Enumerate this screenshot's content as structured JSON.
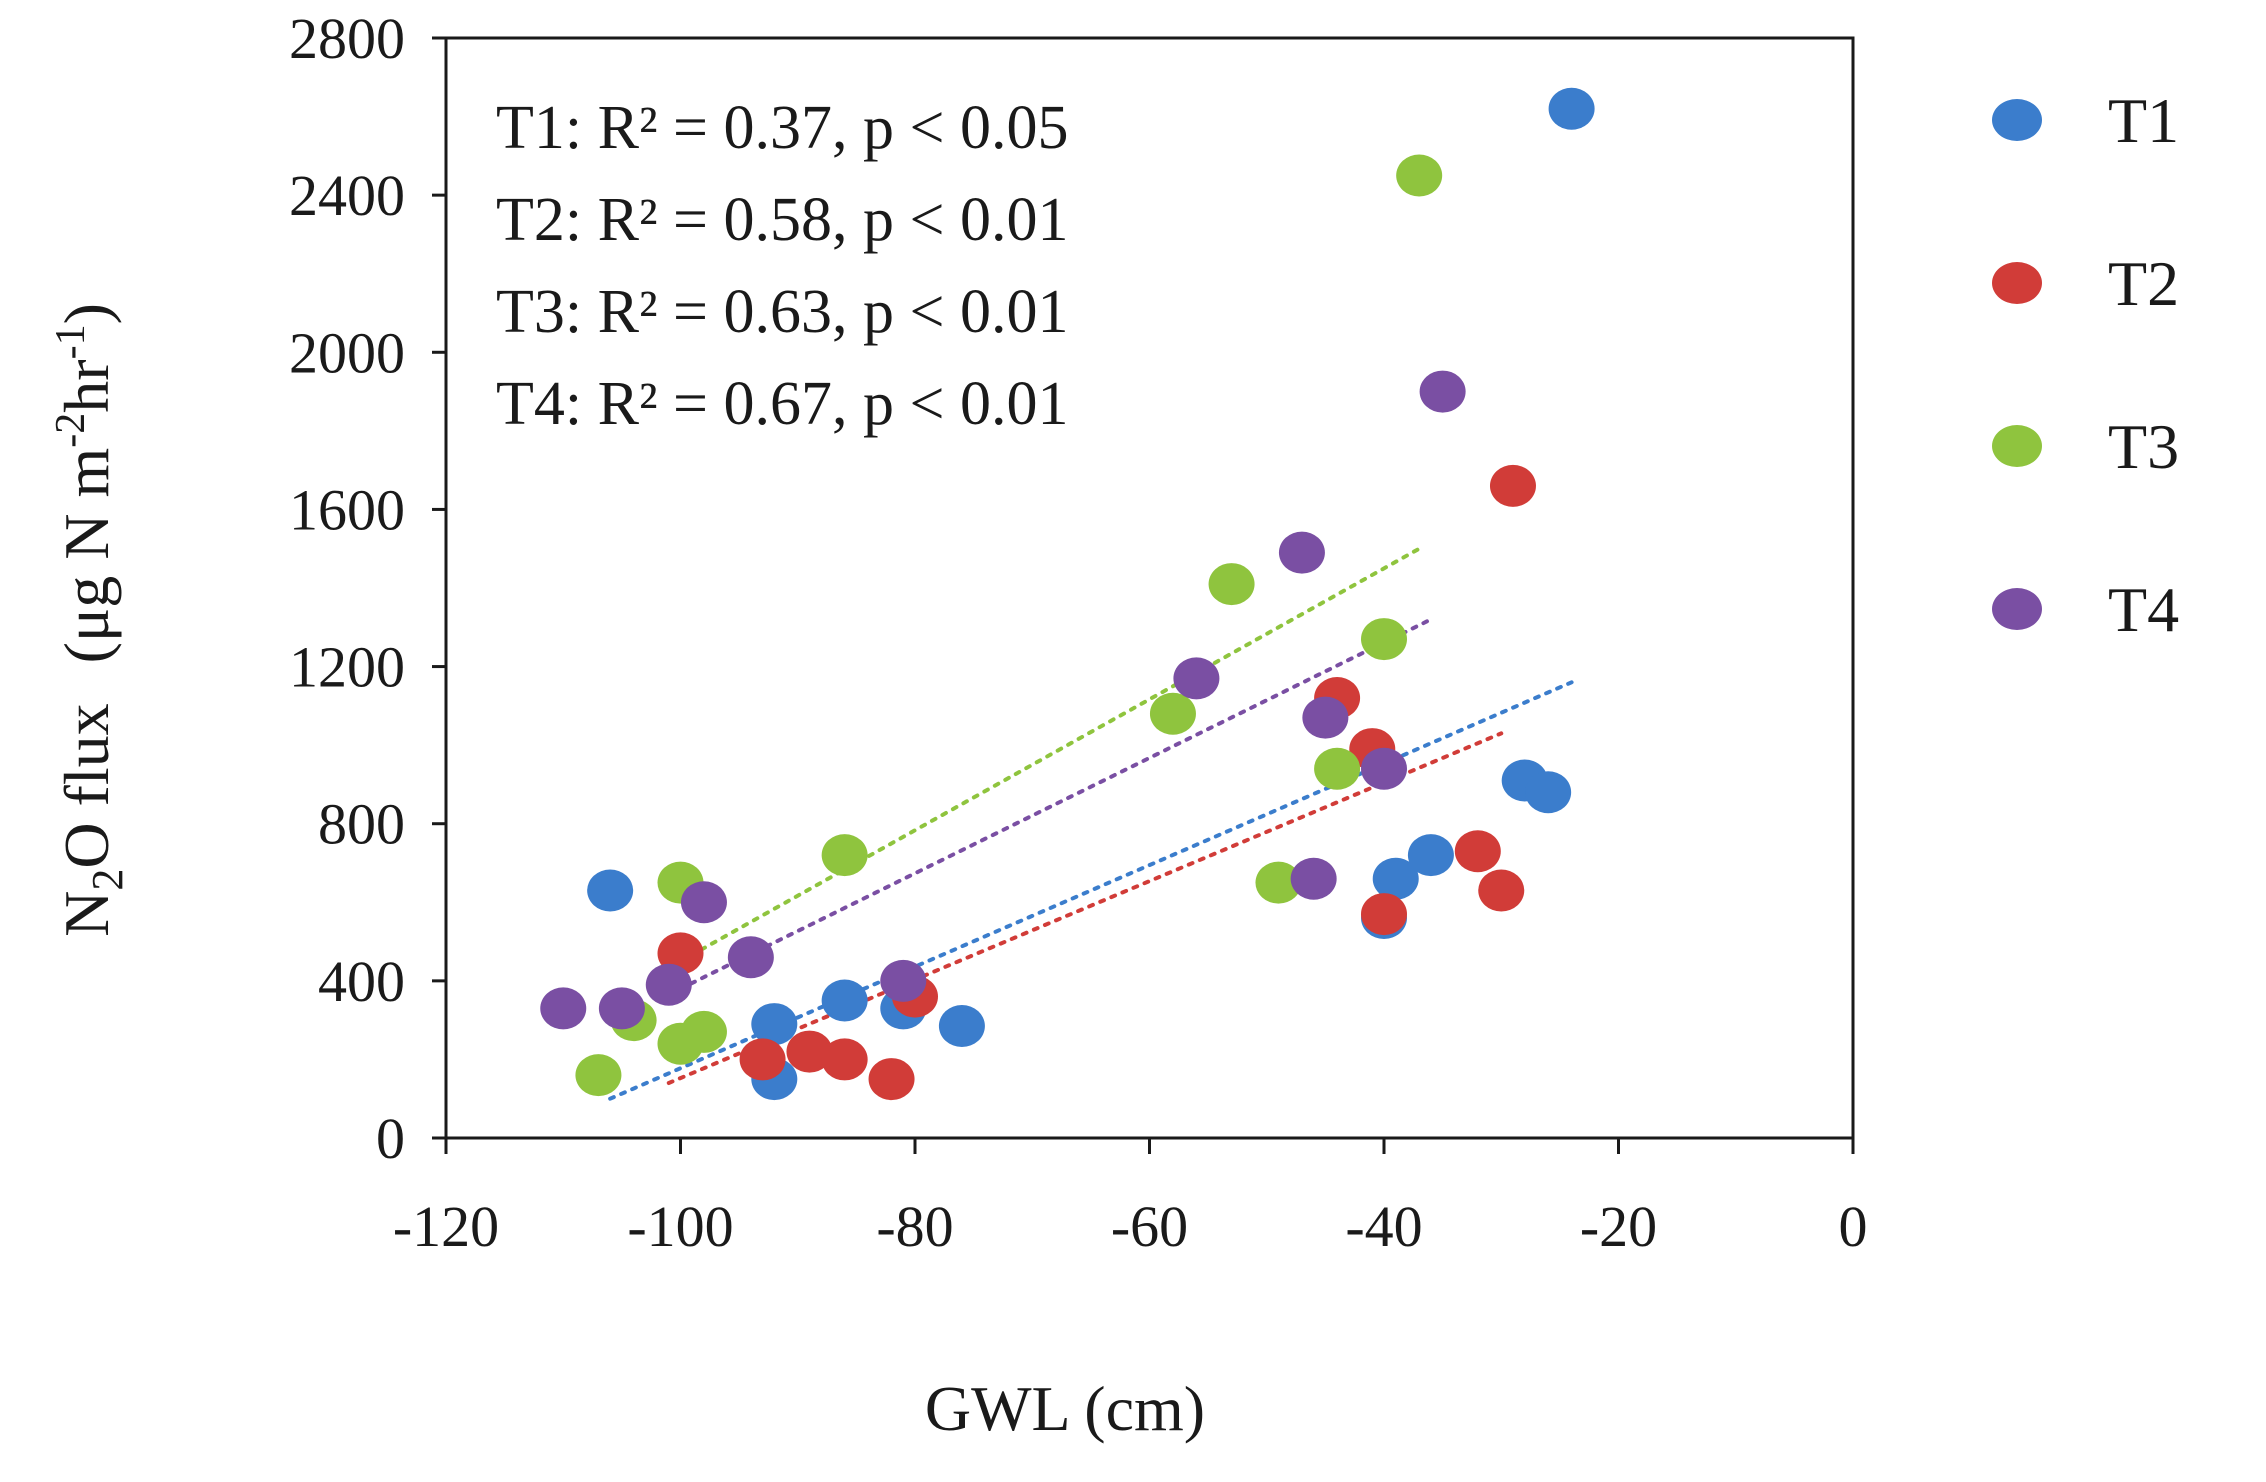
{
  "chart_data": {
    "type": "scatter",
    "title": "",
    "xlabel": "GWL (cm)",
    "ylabel_parts": {
      "lead": "N",
      "sub": "2",
      "mid": "O flux",
      "unit": "(μg N m",
      "exp1": "-2",
      "unit_mid": "hr",
      "exp2": "-1",
      "close": ")"
    },
    "xlim": [
      -120,
      0
    ],
    "ylim": [
      0,
      2800
    ],
    "xticks": [
      -120,
      -100,
      -80,
      -60,
      -40,
      -20,
      0
    ],
    "yticks": [
      0,
      400,
      800,
      1200,
      1600,
      2000,
      2400,
      2800
    ],
    "stats": [
      "T1: R² = 0.37, p < 0.05",
      "T2: R² = 0.58, p < 0.01",
      "T3: R² = 0.63, p < 0.01",
      "T4: R² = 0.67, p < 0.01"
    ],
    "legend_position": "right",
    "series": [
      {
        "name": "T1",
        "color": "#3b7dcc",
        "points": [
          [
            -106,
            630
          ],
          [
            -92,
            290
          ],
          [
            -92,
            150
          ],
          [
            -86,
            350
          ],
          [
            -81,
            330
          ],
          [
            -76,
            285
          ],
          [
            -40,
            560
          ],
          [
            -39,
            660
          ],
          [
            -36,
            720
          ],
          [
            -28,
            910
          ],
          [
            -26,
            880
          ],
          [
            -24,
            2620
          ]
        ],
        "trend": [
          [
            -106,
            100
          ],
          [
            -24,
            1160
          ]
        ]
      },
      {
        "name": "T2",
        "color": "#d13c38",
        "points": [
          [
            -100,
            470
          ],
          [
            -93,
            200
          ],
          [
            -89,
            220
          ],
          [
            -86,
            200
          ],
          [
            -82,
            150
          ],
          [
            -80,
            360
          ],
          [
            -44,
            1120
          ],
          [
            -41,
            990
          ],
          [
            -40,
            570
          ],
          [
            -32,
            730
          ],
          [
            -30,
            630
          ],
          [
            -29,
            1660
          ]
        ],
        "trend": [
          [
            -101,
            140
          ],
          [
            -30,
            1030
          ]
        ]
      },
      {
        "name": "T3",
        "color": "#8fc43e",
        "points": [
          [
            -107,
            160
          ],
          [
            -104,
            300
          ],
          [
            -100,
            650
          ],
          [
            -100,
            240
          ],
          [
            -98,
            270
          ],
          [
            -86,
            720
          ],
          [
            -58,
            1080
          ],
          [
            -53,
            1410
          ],
          [
            -49,
            650
          ],
          [
            -44,
            940
          ],
          [
            -40,
            1270
          ],
          [
            -37,
            2450
          ]
        ],
        "trend": [
          [
            -100,
            450
          ],
          [
            -37,
            1500
          ]
        ]
      },
      {
        "name": "T4",
        "color": "#7a4fa3",
        "points": [
          [
            -110,
            330
          ],
          [
            -105,
            330
          ],
          [
            -101,
            390
          ],
          [
            -98,
            600
          ],
          [
            -94,
            460
          ],
          [
            -81,
            400
          ],
          [
            -56,
            1170
          ],
          [
            -47,
            1490
          ],
          [
            -46,
            660
          ],
          [
            -45,
            1070
          ],
          [
            -40,
            940
          ],
          [
            -35,
            1900
          ]
        ],
        "trend": [
          [
            -100,
            380
          ],
          [
            -36,
            1320
          ]
        ]
      }
    ]
  }
}
